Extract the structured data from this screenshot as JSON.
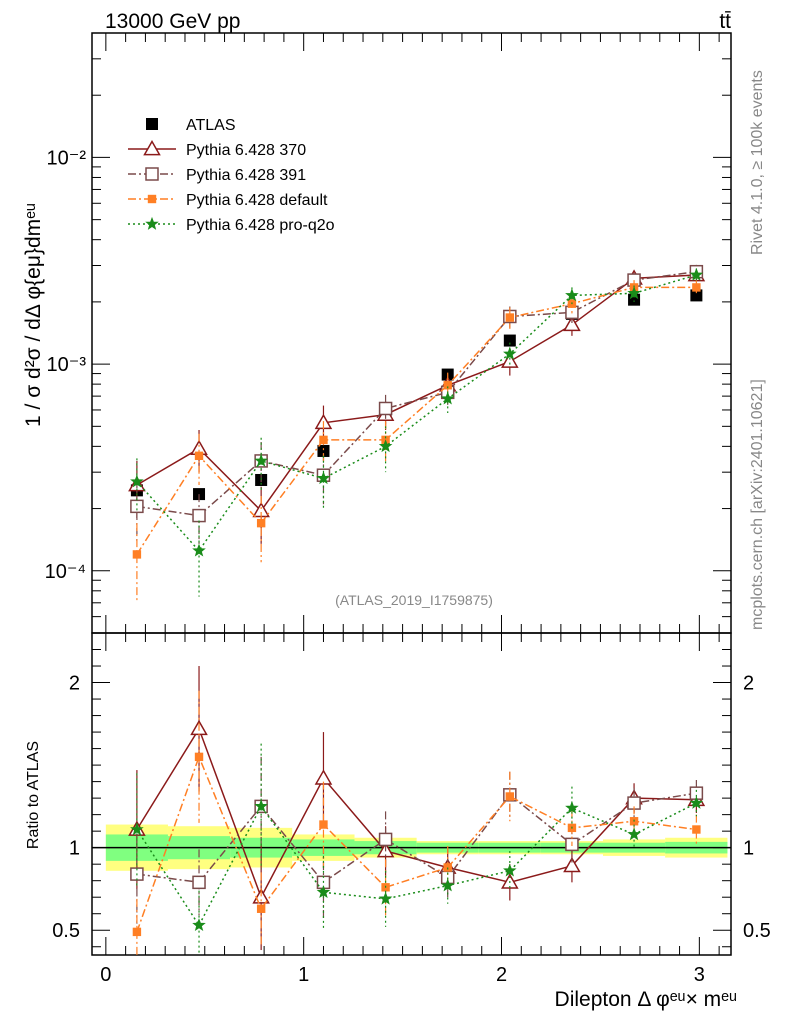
{
  "header": {
    "left_label": "13000 GeV pp",
    "right_label": "tt̄"
  },
  "side_labels": {
    "rivet": "Rivet 4.1.0, ≥ 100k events",
    "mcplots": "mcplots.cern.ch [arXiv:2401.10621]"
  },
  "watermark": "(ATLAS_2019_I1759875)",
  "chart_data": [
    {
      "id": "main",
      "type": "scatter",
      "ylabel": "1 / σ  d²σ / dΔ φ{eμ}dmᵉᵘ",
      "yscale": "log",
      "ylim": [
        5e-05,
        0.04
      ],
      "xlim": [
        -0.07,
        3.16
      ],
      "y_tick_labels": [
        "10⁻⁴",
        "10⁻³",
        "10⁻²"
      ],
      "x": [
        0.157,
        0.471,
        0.785,
        1.1,
        1.414,
        1.728,
        2.042,
        2.356,
        2.67,
        2.985
      ],
      "series": [
        {
          "name": "ATLAS",
          "color": "#000000",
          "marker": "square-filled",
          "line": "none",
          "values": [
            0.000245,
            0.000235,
            0.000275,
            0.00038,
            0.00058,
            0.00089,
            0.0013,
            0.00175,
            0.00205,
            0.00215
          ]
        },
        {
          "name": "Pythia 6.428 370",
          "color": "#8b1a1a",
          "marker": "triangle-open",
          "line": "solid",
          "values": [
            0.00026,
            0.00039,
            0.000195,
            0.00052,
            0.00057,
            0.00079,
            0.00103,
            0.00155,
            0.0026,
            0.0027
          ],
          "err": [
            8e-05,
            9e-05,
            6e-05,
            0.00011,
            9e-05,
            0.0001,
            0.00015,
            0.00018,
            0.0002,
            0.0002
          ]
        },
        {
          "name": "Pythia 6.428 391",
          "color": "#7a4a4a",
          "marker": "square-open",
          "line": "dashdot",
          "values": [
            0.000205,
            0.000185,
            0.00034,
            0.00029,
            0.00061,
            0.00073,
            0.0017,
            0.00178,
            0.00255,
            0.0028
          ],
          "err": [
            7e-05,
            5e-05,
            8e-05,
            8e-05,
            0.0001,
            0.0001,
            0.0002,
            0.0002,
            0.0002,
            0.00022
          ]
        },
        {
          "name": "Pythia 6.428 default",
          "color": "#ff7f24",
          "marker": "square-filled-small",
          "line": "dashdot",
          "values": [
            0.00012,
            0.00036,
            0.00017,
            0.00043,
            0.00043,
            0.00079,
            0.00168,
            0.00196,
            0.00235,
            0.00235
          ],
          "err": [
            5e-05,
            0.0001,
            6e-05,
            0.0001,
            0.0001,
            0.00012,
            0.0002,
            0.0002,
            0.0002,
            0.0002
          ]
        },
        {
          "name": "Pythia 6.428 pro-q2o",
          "color": "#1a8c1a",
          "marker": "star",
          "line": "dotted",
          "values": [
            0.00027,
            0.000125,
            0.00034,
            0.00028,
            0.0004,
            0.00068,
            0.00112,
            0.00215,
            0.0022,
            0.0027
          ],
          "err": [
            8e-05,
            5e-05,
            0.0001,
            8e-05,
            0.0001,
            0.0001,
            0.00015,
            0.0002,
            0.0002,
            0.0002
          ]
        }
      ]
    },
    {
      "id": "ratio",
      "type": "scatter",
      "ylabel": "Ratio to ATLAS",
      "ylim": [
        0.35,
        2.3
      ],
      "y_ticks": [
        0.5,
        1,
        2
      ],
      "y_tick_labels": [
        "0.5",
        "1",
        "2"
      ],
      "xlabel": "Dilepton Δ φᵉᵘ× mᵉᵘ",
      "x_ticks": [
        0,
        1,
        2,
        3
      ],
      "x_tick_labels": [
        "0",
        "1",
        "2",
        "3"
      ],
      "bands": {
        "edges": [
          0,
          0.314,
          0.628,
          0.942,
          1.257,
          1.571,
          1.885,
          2.199,
          2.513,
          2.827,
          3.142
        ],
        "green_halfwidth": [
          0.08,
          0.07,
          0.06,
          0.05,
          0.04,
          0.03,
          0.03,
          0.03,
          0.03,
          0.035
        ],
        "yellow_halfwidth": [
          0.14,
          0.13,
          0.12,
          0.08,
          0.06,
          0.04,
          0.04,
          0.04,
          0.05,
          0.06
        ],
        "green_color": "#80ff80",
        "yellow_color": "#ffff80"
      },
      "series": [
        {
          "name": "Pythia 6.428 370",
          "values": [
            1.11,
            1.72,
            0.7,
            1.42,
            0.98,
            0.88,
            0.79,
            0.89,
            1.3,
            1.29
          ],
          "err": [
            0.36,
            0.38,
            0.32,
            0.28,
            0.15,
            0.11,
            0.11,
            0.1,
            0.09,
            0.08
          ]
        },
        {
          "name": "Pythia 6.428 391",
          "values": [
            0.84,
            0.79,
            1.25,
            0.79,
            1.05,
            0.82,
            1.32,
            1.02,
            1.27,
            1.33
          ],
          "err": [
            0.3,
            0.2,
            0.3,
            0.22,
            0.17,
            0.12,
            0.14,
            0.11,
            0.09,
            0.08
          ]
        },
        {
          "name": "Pythia 6.428 default",
          "values": [
            0.49,
            1.55,
            0.63,
            1.14,
            0.76,
            0.88,
            1.31,
            1.12,
            1.16,
            1.11
          ],
          "err": [
            0.2,
            0.4,
            0.22,
            0.26,
            0.17,
            0.13,
            0.15,
            0.11,
            0.09,
            0.09
          ]
        },
        {
          "name": "Pythia 6.428 pro-q2o",
          "values": [
            1.11,
            0.53,
            1.25,
            0.73,
            0.69,
            0.77,
            0.86,
            1.24,
            1.08,
            1.27
          ],
          "err": [
            0.34,
            0.21,
            0.38,
            0.22,
            0.17,
            0.11,
            0.12,
            0.13,
            0.09,
            0.08
          ]
        }
      ]
    }
  ]
}
